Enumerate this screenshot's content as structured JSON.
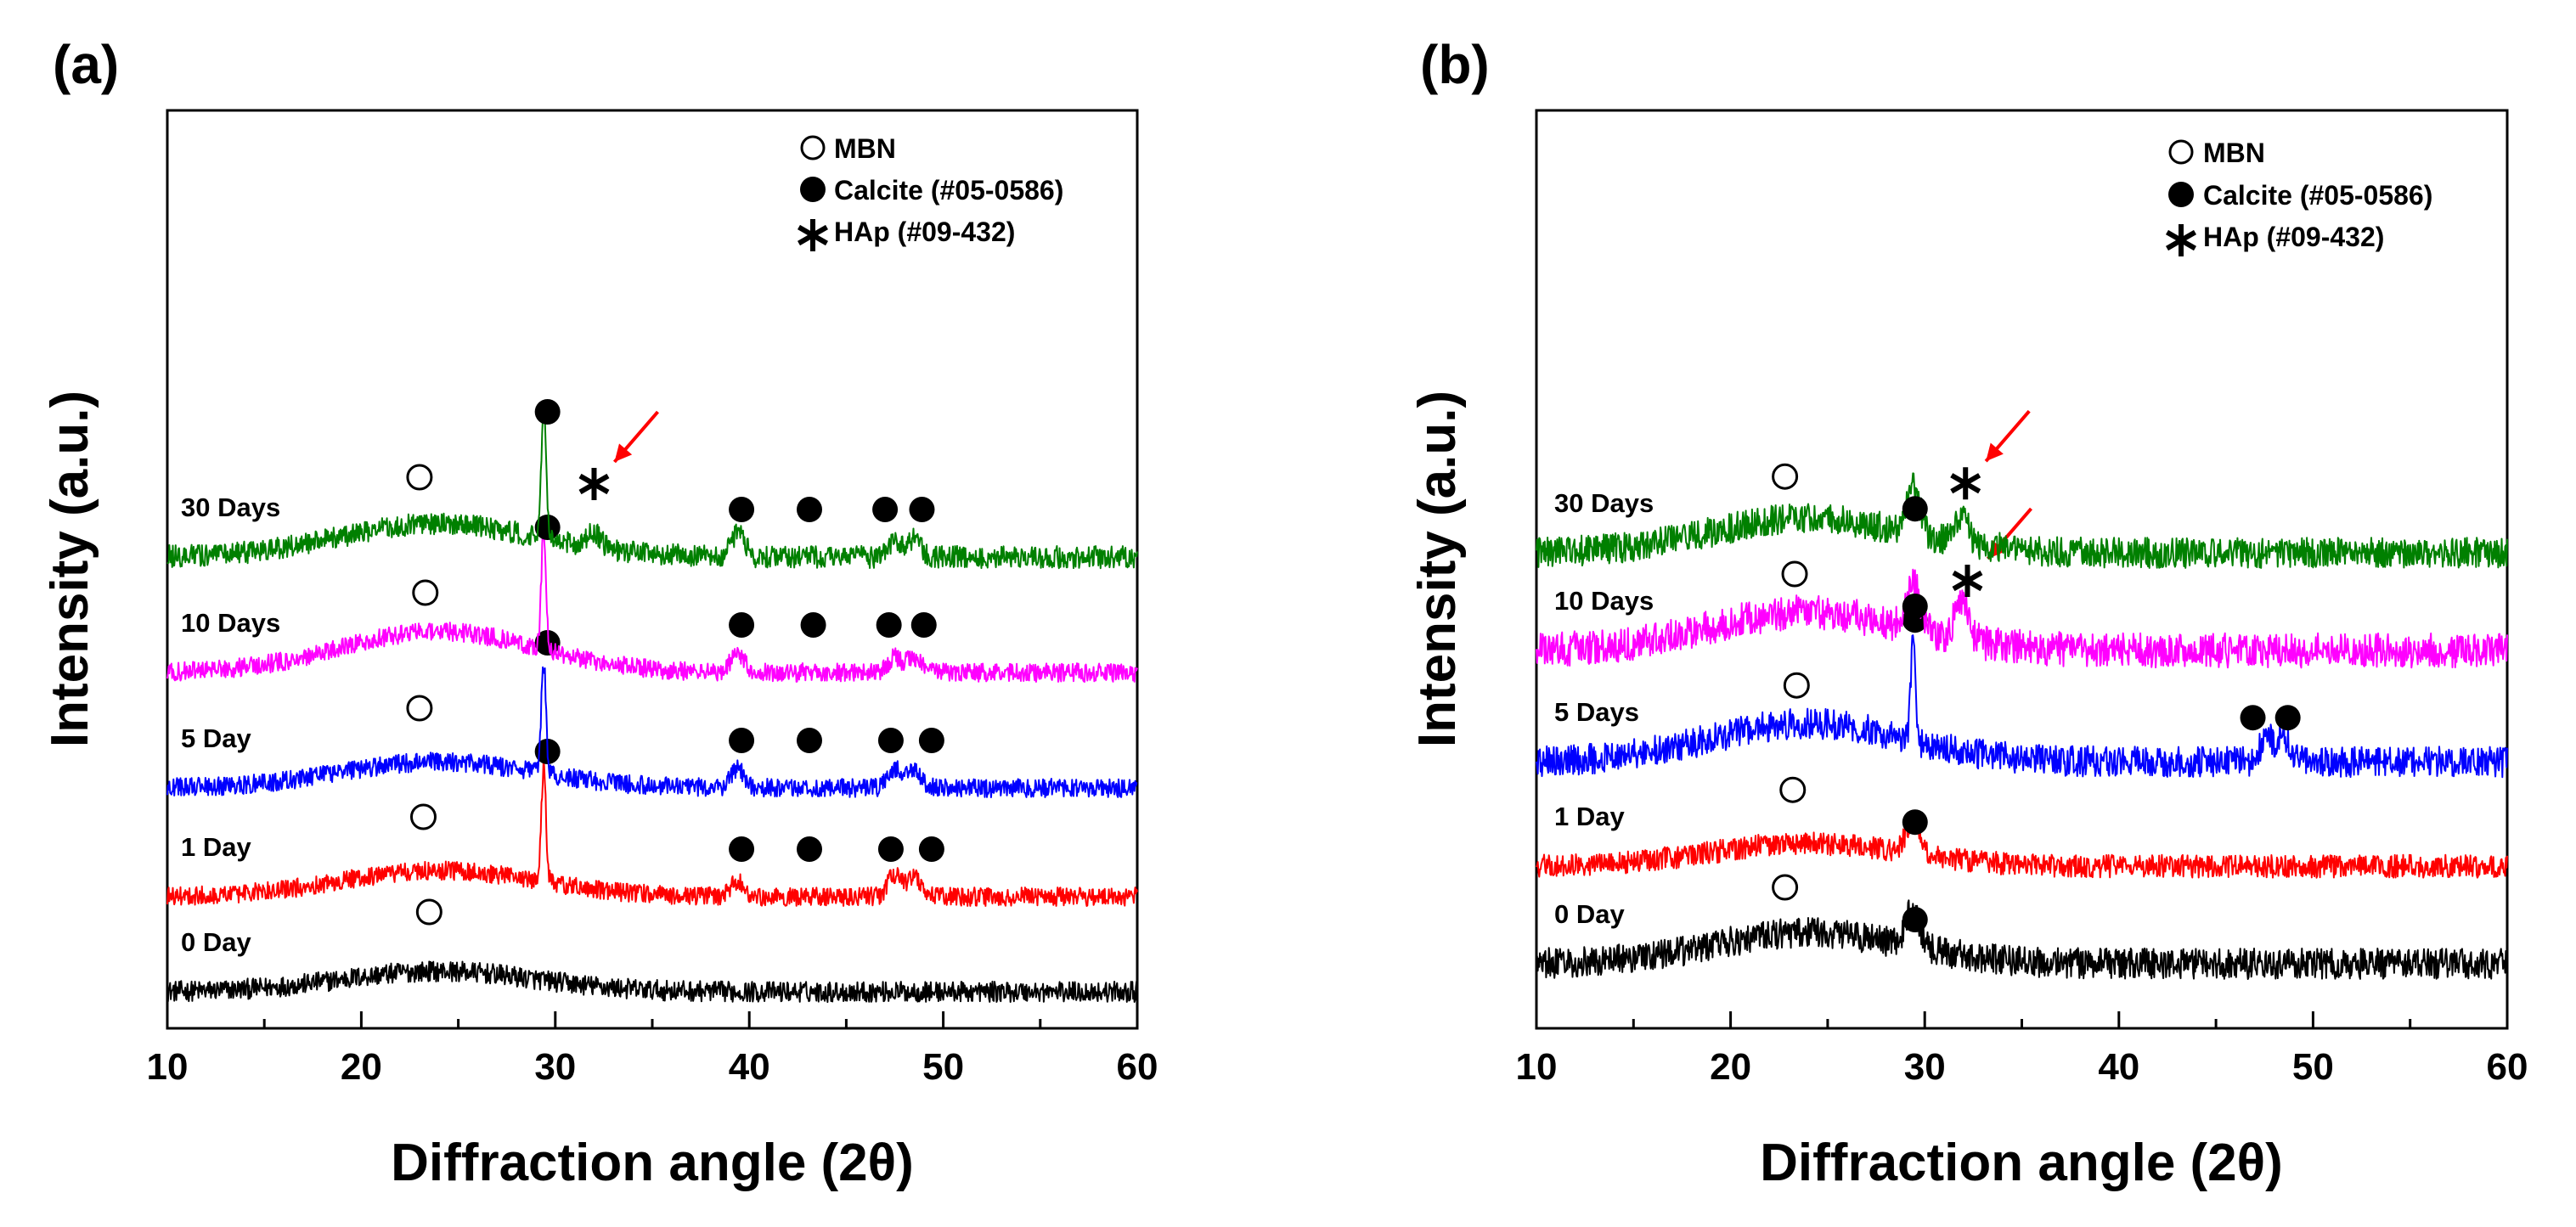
{
  "chart_data": [
    {
      "panel_label": "(a)",
      "type": "line",
      "xlabel": "Diffraction angle (2θ)",
      "ylabel": "Intensity (a.u.)",
      "xlim": [
        10,
        60
      ],
      "x_ticks": [
        10,
        20,
        30,
        40,
        50,
        60
      ],
      "y_ticks": [],
      "legend": {
        "placement": "top-right",
        "entries": [
          {
            "marker": "open-circle",
            "label": "MBN"
          },
          {
            "marker": "filled-circle",
            "label": "Calcite (#05-0586)"
          },
          {
            "marker": "asterisk",
            "label": "HAp (#09-432)"
          }
        ]
      },
      "series": [
        {
          "name": "0 Day",
          "color": "#000000",
          "offset": 0.0,
          "noise": 0.55,
          "hump": 0.55,
          "sharp_peaks": [],
          "annotations": [
            {
              "marker": "open-circle",
              "x": 23.5
            }
          ]
        },
        {
          "name": "1 Day",
          "color": "#ff0000",
          "offset": 1.4,
          "noise": 0.5,
          "hump": 0.7,
          "sharp_peaks": [
            [
              29.4,
              3.0
            ],
            [
              39.4,
              0.4
            ],
            [
              47.5,
              0.6
            ],
            [
              48.5,
              0.5
            ]
          ],
          "annotations": [
            {
              "marker": "open-circle",
              "x": 23.2
            },
            {
              "marker": "filled-circle",
              "x": 29.6
            },
            {
              "marker": "filled-circle",
              "x": 39.6
            },
            {
              "marker": "filled-circle",
              "x": 43.1
            },
            {
              "marker": "filled-circle",
              "x": 47.3
            },
            {
              "marker": "filled-circle",
              "x": 49.4
            }
          ]
        },
        {
          "name": "5 Day",
          "color": "#0000ff",
          "offset": 3.0,
          "noise": 0.5,
          "hump": 0.7,
          "sharp_peaks": [
            [
              29.4,
              3.0
            ],
            [
              39.4,
              0.5
            ],
            [
              47.5,
              0.5
            ],
            [
              48.5,
              0.5
            ]
          ],
          "annotations": [
            {
              "marker": "open-circle",
              "x": 23.0
            },
            {
              "marker": "filled-circle",
              "x": 29.6
            },
            {
              "marker": "filled-circle",
              "x": 39.6
            },
            {
              "marker": "filled-circle",
              "x": 43.1
            },
            {
              "marker": "filled-circle",
              "x": 47.3
            },
            {
              "marker": "filled-circle",
              "x": 49.4
            }
          ]
        },
        {
          "name": "10 Days",
          "color": "#ff00ff",
          "offset": 4.7,
          "noise": 0.5,
          "hump": 1.1,
          "sharp_peaks": [
            [
              29.4,
              3.2
            ],
            [
              39.4,
              0.5
            ],
            [
              47.5,
              0.4
            ],
            [
              48.5,
              0.4
            ]
          ],
          "annotations": [
            {
              "marker": "open-circle",
              "x": 23.3
            },
            {
              "marker": "filled-circle",
              "x": 29.6
            },
            {
              "marker": "filled-circle",
              "x": 39.6
            },
            {
              "marker": "filled-circle",
              "x": 43.3
            },
            {
              "marker": "filled-circle",
              "x": 47.2
            },
            {
              "marker": "filled-circle",
              "x": 49.0
            }
          ]
        },
        {
          "name": "30 Days",
          "color": "#008000",
          "offset": 6.4,
          "noise": 0.6,
          "hump": 0.9,
          "sharp_peaks": [
            [
              29.4,
              3.6
            ],
            [
              32.0,
              0.4
            ],
            [
              39.4,
              0.6
            ],
            [
              47.5,
              0.4
            ],
            [
              48.5,
              0.5
            ]
          ],
          "annotations": [
            {
              "marker": "open-circle",
              "x": 23.0
            },
            {
              "marker": "filled-circle",
              "x": 29.6
            },
            {
              "marker": "asterisk",
              "x": 32.0,
              "arrow": true
            },
            {
              "marker": "filled-circle",
              "x": 39.6
            },
            {
              "marker": "filled-circle",
              "x": 43.1
            },
            {
              "marker": "filled-circle",
              "x": 47.0
            },
            {
              "marker": "filled-circle",
              "x": 48.9
            }
          ]
        }
      ]
    },
    {
      "panel_label": "(b)",
      "type": "line",
      "xlabel": "Diffraction angle (2θ)",
      "ylabel": "Intensity (a.u.)",
      "xlim": [
        10,
        60
      ],
      "x_ticks": [
        10,
        20,
        30,
        40,
        50,
        60
      ],
      "y_ticks": [],
      "legend": {
        "placement": "top-right",
        "entries": [
          {
            "marker": "open-circle",
            "label": "MBN"
          },
          {
            "marker": "filled-circle",
            "label": "Calcite (#05-0586)"
          },
          {
            "marker": "asterisk",
            "label": "HAp (#09-432)"
          }
        ]
      },
      "series": [
        {
          "name": "0 Day",
          "color": "#000000",
          "offset": 0.0,
          "noise": 0.8,
          "hump": 0.8,
          "sharp_peaks": [
            [
              29.4,
              1.0
            ]
          ],
          "annotations": [
            {
              "marker": "open-circle",
              "x": 22.8
            },
            {
              "marker": "filled-circle",
              "x": 29.5
            }
          ]
        },
        {
          "name": "1 Day",
          "color": "#ff0000",
          "offset": 1.4,
          "noise": 0.6,
          "hump": 0.6,
          "sharp_peaks": [
            [
              29.4,
              0.9
            ]
          ],
          "annotations": [
            {
              "marker": "open-circle",
              "x": 23.2
            },
            {
              "marker": "filled-circle",
              "x": 29.5
            }
          ]
        },
        {
          "name": "5 Days",
          "color": "#0000ff",
          "offset": 2.9,
          "noise": 0.8,
          "hump": 1.0,
          "sharp_peaks": [
            [
              29.4,
              2.5
            ],
            [
              47.6,
              0.6
            ],
            [
              48.5,
              0.6
            ]
          ],
          "annotations": [
            {
              "marker": "open-circle",
              "x": 23.4
            },
            {
              "marker": "filled-circle",
              "x": 29.5
            },
            {
              "marker": "filled-circle",
              "x": 46.9
            },
            {
              "marker": "filled-circle",
              "x": 48.7
            }
          ]
        },
        {
          "name": "10 Days",
          "color": "#ff00ff",
          "offset": 4.5,
          "noise": 0.9,
          "hump": 1.0,
          "sharp_peaks": [
            [
              29.4,
              1.2
            ],
            [
              31.9,
              1.0
            ]
          ],
          "annotations": [
            {
              "marker": "open-circle",
              "x": 23.3
            },
            {
              "marker": "filled-circle",
              "x": 29.5
            },
            {
              "marker": "asterisk",
              "x": 32.2,
              "arrow": true
            }
          ]
        },
        {
          "name": "30 Days",
          "color": "#008000",
          "offset": 5.9,
          "noise": 0.8,
          "hump": 0.9,
          "sharp_peaks": [
            [
              29.4,
              1.2
            ],
            [
              31.9,
              0.7
            ]
          ],
          "annotations": [
            {
              "marker": "open-circle",
              "x": 22.8
            },
            {
              "marker": "filled-circle",
              "x": 29.5
            },
            {
              "marker": "asterisk",
              "x": 32.1,
              "arrow": true
            }
          ]
        }
      ]
    }
  ]
}
